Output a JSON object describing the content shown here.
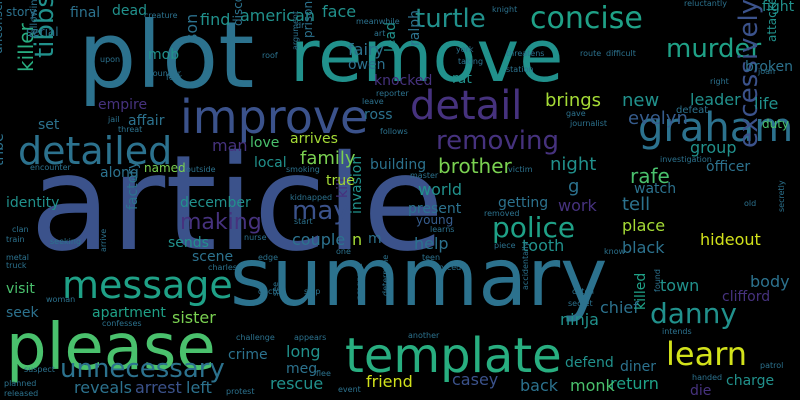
{
  "words": {
    "article": "article",
    "plot": "plot",
    "remove": "remove",
    "summary": "summary",
    "please": "please",
    "template": "template",
    "improve": "improve",
    "detail": "detail",
    "detailed": "detailed",
    "message": "message",
    "graham": "graham",
    "concise": "concise",
    "turtle": "turtle",
    "murder": "murder",
    "removing": "removing",
    "excessively": "excessively",
    "learn": "learn",
    "danny": "danny",
    "police": "police",
    "unnecessary": "unnecessary",
    "tibbs": "tibbs",
    "killer": "killer",
    "may": "may",
    "making": "making",
    "family": "family",
    "brother": "brother",
    "rafe": "rafe",
    "tell": "tell",
    "evelyn": "evelyn",
    "new": "new",
    "brings": "brings",
    "leader": "leader",
    "life": "life",
    "fight": "fight",
    "broken": "broken",
    "attacked": "attacked",
    "duty": "duty",
    "group": "group",
    "officer": "officer",
    "hideout": "hideout",
    "black": "black",
    "place": "place",
    "town": "town",
    "body": "body",
    "clifford": "clifford",
    "chief": "chief",
    "ninja": "ninja",
    "return": "return",
    "monk": "monk",
    "diner": "diner",
    "charge": "charge",
    "die": "die",
    "killed": "killed",
    "defend": "defend",
    "back": "back",
    "casey": "casey",
    "friend": "friend",
    "rescue": "rescue",
    "meg": "meg",
    "long": "long",
    "crime": "crime",
    "sister": "sister",
    "apartment": "apartment",
    "seek": "seek",
    "visit": "visit",
    "reveals": "reveals",
    "arrest": "arrest",
    "left": "left",
    "scene": "scene",
    "sends": "sends",
    "factory": "factory",
    "december": "december",
    "couple": "couple",
    "help": "help",
    "tooth": "tooth",
    "invasion": "invasion",
    "present": "present",
    "young": "young",
    "world": "world",
    "getting": "getting",
    "work": "work",
    "night": "night",
    "watch": "watch",
    "g": "g",
    "n": "n",
    "kill": "kill",
    "building": "building",
    "true": "true",
    "local": "local",
    "love": "love",
    "man": "man",
    "arrives": "arrives",
    "along": "along",
    "named": "named",
    "identity": "identity",
    "tribe": "tribe",
    "empire": "empire",
    "affair": "affair",
    "set": "set",
    "unconscious": "unconscious",
    "ross": "ross",
    "rat": "rat",
    "knocked": "knocked",
    "lead": "lead",
    "ralph": "ralph",
    "owen": "owen",
    "fairy": "fairy",
    "face": "face",
    "american": "american",
    "prisoner": "prisoner",
    "discovers": "discovers",
    "son": "son",
    "find": "find",
    "mob": "mob",
    "dead": "dead",
    "final": "final",
    "story": "story",
    "serial": "serial",
    "following": "following",
    "creature": "creature",
    "younger": "younger",
    "upon": "upon",
    "threat": "threat",
    "jail": "jail",
    "fear": "fear",
    "roof": "roof",
    "argument": "argument",
    "meanwhile": "meanwhile",
    "dr": "dr",
    "knight": "knight",
    "york": "york",
    "taking": "taking",
    "threatens": "threatens",
    "station": "station",
    "route": "route",
    "difficult": "difficult",
    "reluctantly": "reluctantly",
    "right": "right",
    "joan": "joan",
    "defeat": "defeat",
    "reporter": "reporter",
    "leave": "leave",
    "art": "art",
    "follows": "follows",
    "gave": "gave",
    "journalist": "journalist",
    "investigation": "investigation",
    "old": "old",
    "secretly": "secretly",
    "patrol": "patrol",
    "intends": "intends",
    "handed": "handed",
    "secret": "secret",
    "catch": "catch",
    "accidentally": "accidentally",
    "another": "another",
    "determine": "determine",
    "pregnant": "pregnant",
    "forced": "forced",
    "teen": "teen",
    "know": "know",
    "piece": "piece",
    "learns": "learns",
    "removed": "removed",
    "victim": "victim",
    "master": "master",
    "slap": "slap",
    "appears": "appears",
    "protest": "protest",
    "event": "event",
    "flee": "flee",
    "see": "see",
    "doctor": "doctor",
    "challenge": "challenge",
    "confesses": "confesses",
    "woman": "woman",
    "suspect": "suspect",
    "planned": "planned",
    "released": "released",
    "truck": "truck",
    "metal": "metal",
    "train": "train",
    "clan": "clan",
    "seeking": "seeking",
    "arrive": "arrive",
    "nurse": "nurse",
    "charles": "charles",
    "edge": "edge",
    "one": "one",
    "start": "start",
    "kidnapped": "kidnapped",
    "smoking": "smoking",
    "outside": "outside",
    "encounter": "encounter",
    "found": "found",
    "m": "m"
  },
  "palette": {
    "purple_dark": "#46327e",
    "indigo": "#3b528b",
    "blue": "#365c8d",
    "teal_blue": "#2c728e",
    "teal": "#21918c",
    "green_teal": "#1fa187",
    "green": "#28ae80",
    "light_green": "#4ac16d",
    "lime": "#7ad151",
    "yellow_green": "#a5db36",
    "yellow": "#d2e21b",
    "deep_purple": "#482878",
    "violet": "#440154"
  }
}
